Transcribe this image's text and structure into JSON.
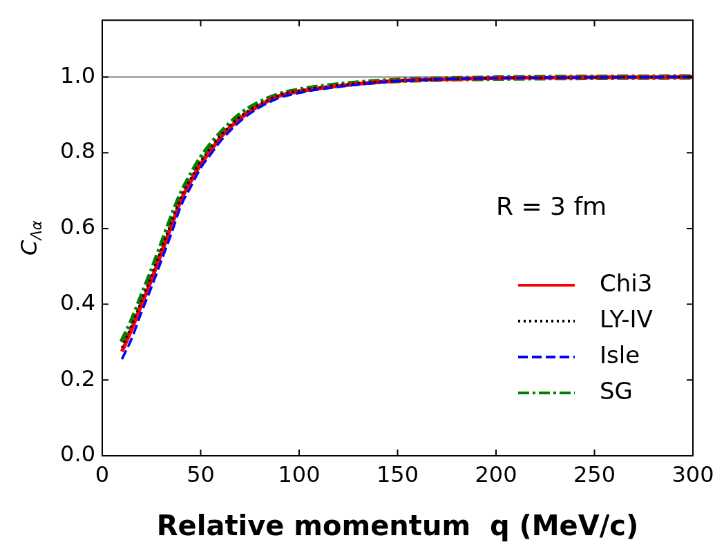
{
  "chart_data": {
    "type": "line",
    "xlabel": "Relative momentum  q (MeV/c)",
    "ylabel": "C$_{Λα}$",
    "x": [
      10,
      15,
      20,
      25,
      30,
      35,
      40,
      45,
      50,
      55,
      60,
      70,
      80,
      90,
      100,
      110,
      130,
      150,
      200,
      250,
      300
    ],
    "series": [
      {
        "name": "Chi3",
        "color": "#ff0000",
        "line_style": "solid",
        "values": [
          0.275,
          0.335,
          0.4,
          0.465,
          0.535,
          0.605,
          0.675,
          0.725,
          0.77,
          0.805,
          0.84,
          0.89,
          0.925,
          0.95,
          0.962,
          0.97,
          0.982,
          0.99,
          0.997,
          0.999,
          1.0
        ]
      },
      {
        "name": "LY-IV",
        "color": "#000000",
        "line_style": "dotted",
        "values": [
          0.285,
          0.345,
          0.41,
          0.475,
          0.545,
          0.615,
          0.682,
          0.732,
          0.777,
          0.812,
          0.845,
          0.895,
          0.928,
          0.952,
          0.964,
          0.972,
          0.983,
          0.99,
          0.997,
          0.999,
          1.0
        ]
      },
      {
        "name": "Isle",
        "color": "#0000ff",
        "line_style": "dashed",
        "values": [
          0.255,
          0.31,
          0.38,
          0.445,
          0.515,
          0.585,
          0.66,
          0.71,
          0.76,
          0.795,
          0.83,
          0.883,
          0.92,
          0.945,
          0.958,
          0.967,
          0.98,
          0.989,
          0.997,
          0.999,
          1.0
        ]
      },
      {
        "name": "SG",
        "color": "#008000",
        "line_style": "dashdot",
        "values": [
          0.3,
          0.355,
          0.42,
          0.485,
          0.555,
          0.625,
          0.69,
          0.74,
          0.785,
          0.82,
          0.85,
          0.9,
          0.932,
          0.953,
          0.965,
          0.973,
          0.984,
          0.991,
          0.997,
          0.999,
          1.0
        ]
      }
    ],
    "xlim": [
      0,
      300
    ],
    "xticks": [
      0,
      50,
      100,
      150,
      200,
      250,
      300
    ],
    "ylim": [
      0,
      1.15
    ],
    "yticks": [
      {
        "value": 0,
        "label": "0.0"
      },
      {
        "value": 0.2,
        "label": "0.2"
      },
      {
        "value": 0.4,
        "label": "0.4"
      },
      {
        "value": 0.6,
        "label": "0.6"
      },
      {
        "value": 0.8,
        "label": "0.8"
      },
      {
        "value": 1,
        "label": "1.0"
      }
    ],
    "ref_lines": [
      {
        "axis": "y",
        "value": 1,
        "label": null,
        "color": "#808080"
      }
    ],
    "annotations": [
      "R = 3 fm"
    ],
    "legend": "bottom right",
    "grid": false,
    "marker": "none"
  }
}
